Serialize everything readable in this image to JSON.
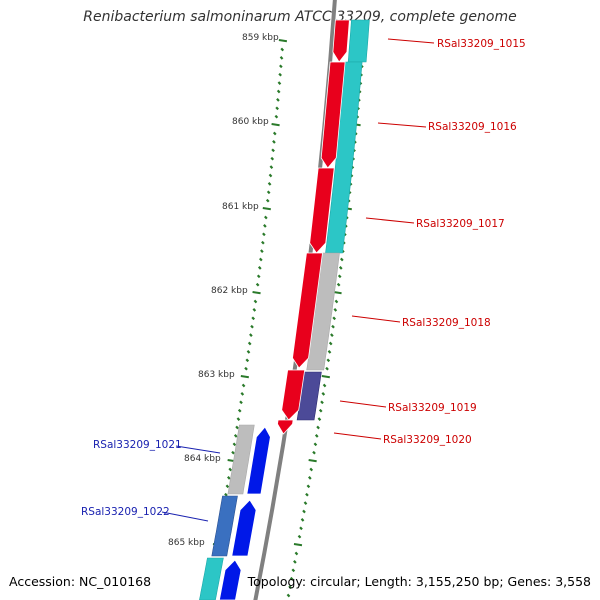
{
  "title": "Renibacterium salmoninarum ATCC 33209, complete genome",
  "footer": {
    "accession": "Accession: NC_010168",
    "summary": "Topology: circular; Length: 3,155,250 bp; Genes: 3,558"
  },
  "colors": {
    "backbone": "#808080",
    "tick": "#2a7a2a",
    "forward_cds": "#e8001c",
    "forward_label": "#cc0000",
    "reverse_cds": "#0018e8",
    "reverse_label": "#1a22b0",
    "cyan_track": "#2cc6c6",
    "gray_track": "#bdbdbd",
    "slate_track": "#4c4a98",
    "steel_track": "#3a70c0"
  },
  "ruler": {
    "unit": "kbp",
    "labels": [
      "859 kbp",
      "860 kbp",
      "861 kbp",
      "862 kbp",
      "863 kbp",
      "864 kbp",
      "865 kbp"
    ]
  },
  "genes": {
    "forward": [
      {
        "label": "RSal33209_1015"
      },
      {
        "label": "RSal33209_1016"
      },
      {
        "label": "RSal33209_1017"
      },
      {
        "label": "RSal33209_1018"
      },
      {
        "label": "RSal33209_1019"
      },
      {
        "label": "RSal33209_1020"
      }
    ],
    "reverse": [
      {
        "label": "RSal33209_1021"
      },
      {
        "label": "RSal33209_1022"
      }
    ]
  }
}
